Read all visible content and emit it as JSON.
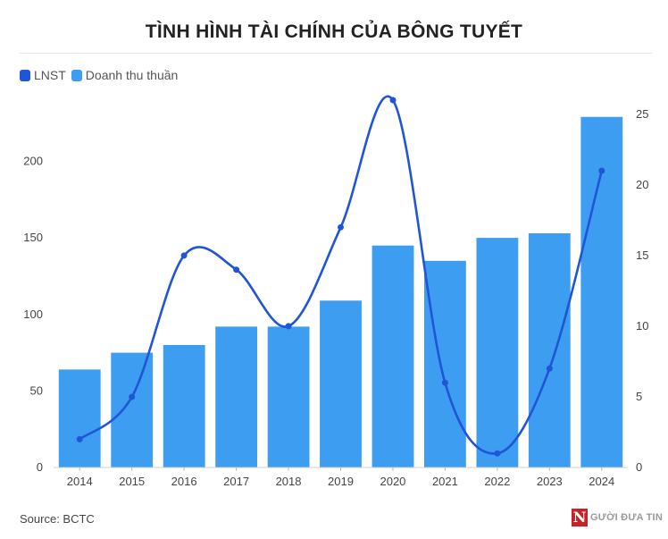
{
  "chart_data": {
    "type": "bar+line",
    "title": "TÌNH HÌNH TÀI CHÍNH CỦA BÔNG TUYẾT",
    "categories": [
      "2014",
      "2015",
      "2016",
      "2017",
      "2018",
      "2019",
      "2020",
      "2021",
      "2022",
      "2023",
      "2024"
    ],
    "series": [
      {
        "name": "Doanh thu thuần",
        "kind": "bar",
        "axis": "left",
        "color": "#3d9df0",
        "values": [
          64,
          75,
          80,
          92,
          92,
          109,
          145,
          135,
          150,
          153,
          229
        ]
      },
      {
        "name": "LNST",
        "kind": "line",
        "axis": "right",
        "color": "#1f55d6",
        "values": [
          2,
          5,
          15,
          14,
          10,
          17,
          26,
          6,
          1,
          7,
          21
        ]
      }
    ],
    "legend": [
      "LNST",
      "Doanh thu thuần"
    ],
    "legend_position": "top-left",
    "y_left": {
      "min": 0,
      "max": 240,
      "ticks": [
        "0",
        "50",
        "100",
        "150",
        "200"
      ]
    },
    "y_right": {
      "min": 0,
      "max": 26,
      "ticks": [
        "0",
        "5",
        "10",
        "15",
        "20",
        "25"
      ]
    },
    "grid": false,
    "source": "Source: BCTC",
    "logo": {
      "mark": "N",
      "text": "GƯỜI ĐƯA TIN"
    }
  }
}
